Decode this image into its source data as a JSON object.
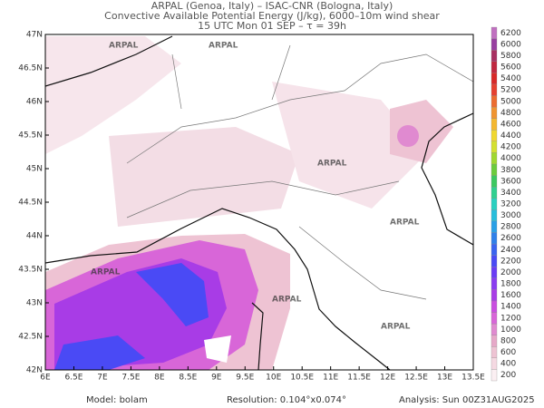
{
  "header": {
    "lines": [
      "ARPAL (Genoa, Italy)  –  ISAC-CNR (Bologna, Italy)",
      "Convective Available Potential Energy (J/kg), 6000–10m wind shear",
      "15 UTC Mon 01 SEP  –  τ = 39h"
    ]
  },
  "map": {
    "lat_labels": [
      "47N",
      "46.5N",
      "46N",
      "45.5N",
      "45N",
      "44.5N",
      "44N",
      "43.5N",
      "43N",
      "42.5N",
      "42N"
    ],
    "lon_labels": [
      "6E",
      "6.5E",
      "7E",
      "7.5E",
      "8E",
      "8.5E",
      "9E",
      "9.5E",
      "10E",
      "10.5E",
      "11E",
      "11.5E",
      "12E",
      "12.5E",
      "13E",
      "13.5E"
    ],
    "watermark": "ARPAL"
  },
  "colorbar": {
    "labels": [
      "200",
      "400",
      "600",
      "800",
      "1000",
      "1200",
      "1400",
      "1600",
      "1800",
      "2000",
      "2200",
      "2400",
      "2600",
      "2800",
      "3000",
      "3200",
      "3400",
      "3600",
      "3800",
      "4000",
      "4200",
      "4400",
      "4600",
      "4800",
      "5000",
      "5200",
      "5400",
      "5600",
      "5800",
      "6000",
      "6200"
    ],
    "colors": [
      "#fbeff2",
      "#f5d9e2",
      "#eec3d3",
      "#e6a8c8",
      "#e08ad0",
      "#d866d8",
      "#c94ee0",
      "#a83ce6",
      "#8a3cf0",
      "#6a3cf5",
      "#4a4af5",
      "#3a64f0",
      "#2f80ea",
      "#2aa0e6",
      "#28bedc",
      "#2ad0c0",
      "#30d090",
      "#3cc860",
      "#6ccc3c",
      "#a0d830",
      "#d4e030",
      "#f0d830",
      "#f4b830",
      "#f09430",
      "#ec6c30",
      "#e64030",
      "#d82828",
      "#c02840",
      "#a83060",
      "#9840a0",
      "#c070c0"
    ]
  },
  "footer": {
    "model": "Model: bolam",
    "resolution": "Resolution: 0.104°x0.074°",
    "analysis": "Analysis: Sun 00Z31AUG2025"
  }
}
